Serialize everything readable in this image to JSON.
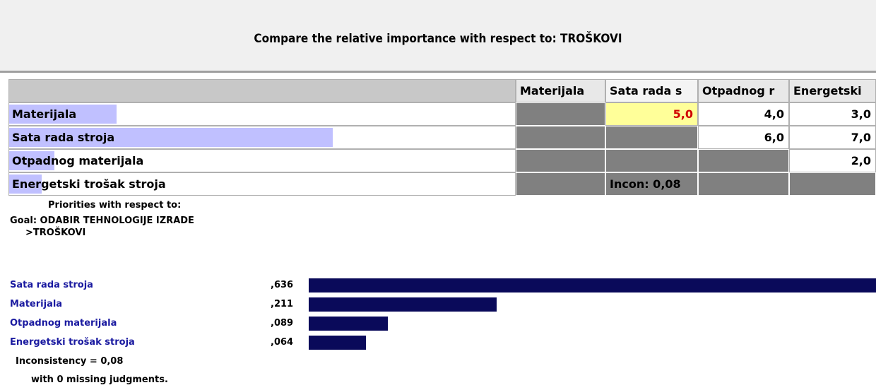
{
  "header": {
    "title": "Compare the relative importance with respect to: TROŠKOVI"
  },
  "table": {
    "columns": [
      "Materijala",
      "Sata rada s",
      "Otpadnog r",
      "Energetski"
    ],
    "rows": [
      {
        "label": "Materijala",
        "cells": [
          null,
          "5,0",
          "4,0",
          "3,0"
        ]
      },
      {
        "label": "Sata rada stroja",
        "cells": [
          null,
          null,
          "6,0",
          "7,0"
        ]
      },
      {
        "label": "Otpadnog materijala",
        "cells": [
          null,
          null,
          null,
          "2,0"
        ]
      },
      {
        "label": "Energetski trošak stroja",
        "cells": [
          null,
          null,
          null,
          null
        ]
      }
    ],
    "highlight_cell": [
      0,
      1
    ],
    "highlight_color": "#ffff99",
    "inconsistency": "Incon: 0,08"
  },
  "priorities": {
    "heading": "Priorities with respect to:",
    "goal": "Goal: ODABIR TEHNOLOGIJE IZRADE",
    "node": ">TROŠKOVI",
    "bar_color": "#0a0a5a",
    "items": [
      {
        "name": "Sata rada stroja",
        "value": 0.636,
        "label": ",636"
      },
      {
        "name": "Materijala",
        "value": 0.211,
        "label": ",211"
      },
      {
        "name": "Otpadnog materijala",
        "value": 0.089,
        "label": ",089"
      },
      {
        "name": "Energetski trošak stroja",
        "value": 0.064,
        "label": ",064"
      }
    ],
    "inconsistency": "Inconsistency = 0,08",
    "missing": "with 0  missing judgments."
  }
}
